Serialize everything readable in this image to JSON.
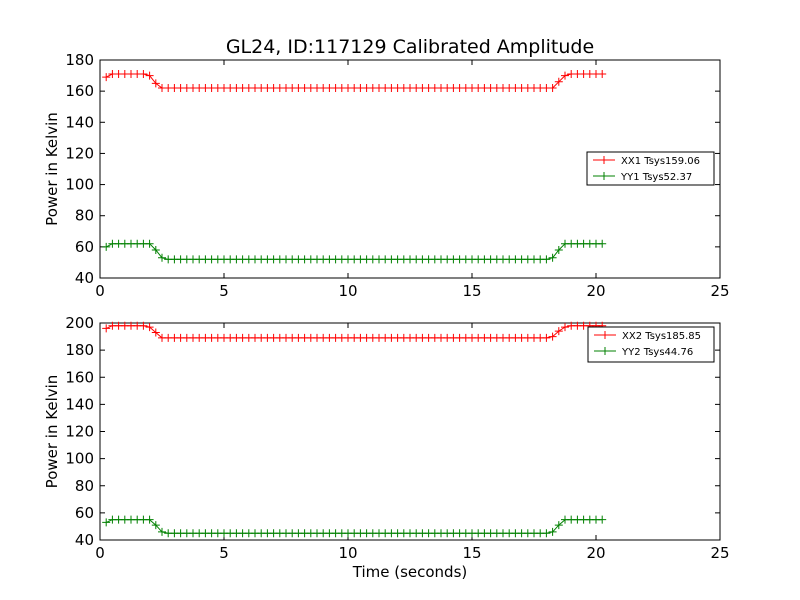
{
  "figure": {
    "title": "GL24, ID:117129 Calibrated Amplitude",
    "xlabel": "Time (seconds)"
  },
  "chart_data": [
    {
      "type": "line",
      "title": "GL24, ID:117129 Calibrated Amplitude",
      "xlabel": "",
      "ylabel": "Power in Kelvin",
      "xlim": [
        0,
        25
      ],
      "ylim": [
        40,
        180
      ],
      "xticks": [
        "0",
        "5",
        "10",
        "15",
        "20",
        "25"
      ],
      "yticks": [
        "40",
        "60",
        "80",
        "100",
        "120",
        "140",
        "160",
        "180"
      ],
      "grid": false,
      "legend_position": "right",
      "marker": "+",
      "series": [
        {
          "name": "XX1 Tsys159.06",
          "color": "#ff0000",
          "x": [
            0.25,
            0.5,
            0.75,
            1.0,
            1.25,
            1.5,
            1.75,
            2.0,
            2.25,
            2.5,
            17.75,
            18.0,
            18.25,
            18.5,
            18.75,
            19.0,
            19.25,
            19.5,
            19.75,
            20.0,
            20.25
          ],
          "y": [
            169,
            171,
            171,
            171,
            171,
            171,
            171,
            170,
            165,
            162,
            162,
            162,
            162,
            166,
            170,
            171,
            171,
            171,
            171,
            171,
            171
          ],
          "plateau": {
            "x_start": 2.5,
            "x_end": 17.75,
            "y": 162
          }
        },
        {
          "name": "YY1 Tsys52.37",
          "color": "#008000",
          "x": [
            0.25,
            0.5,
            0.75,
            1.0,
            1.25,
            1.5,
            1.75,
            2.0,
            2.25,
            2.5,
            17.75,
            18.0,
            18.25,
            18.5,
            18.75,
            19.0,
            19.25,
            19.5,
            19.75,
            20.0,
            20.25
          ],
          "y": [
            60,
            62,
            62,
            62,
            62,
            62,
            62,
            62,
            58,
            53,
            52,
            52,
            53,
            58,
            62,
            62,
            62,
            62,
            62,
            62,
            62
          ],
          "plateau": {
            "x_start": 2.5,
            "x_end": 17.75,
            "y": 52
          }
        }
      ]
    },
    {
      "type": "line",
      "title": "",
      "xlabel": "Time (seconds)",
      "ylabel": "Power in Kelvin",
      "xlim": [
        0,
        25
      ],
      "ylim": [
        40,
        200
      ],
      "xticks": [
        "0",
        "5",
        "10",
        "15",
        "20",
        "25"
      ],
      "yticks": [
        "40",
        "60",
        "80",
        "100",
        "120",
        "140",
        "160",
        "180",
        "200"
      ],
      "grid": false,
      "legend_position": "top-right",
      "marker": "+",
      "series": [
        {
          "name": "XX2 Tsys185.85",
          "color": "#ff0000",
          "x": [
            0.25,
            0.5,
            0.75,
            1.0,
            1.25,
            1.5,
            1.75,
            2.0,
            2.25,
            2.5,
            17.75,
            18.0,
            18.25,
            18.5,
            18.75,
            19.0,
            19.25,
            19.5,
            19.75,
            20.0,
            20.25
          ],
          "y": [
            196,
            198,
            198,
            198,
            198,
            198,
            198,
            197,
            193,
            189,
            189,
            189,
            190,
            194,
            197,
            198,
            198,
            198,
            198,
            198,
            198
          ],
          "plateau": {
            "x_start": 2.5,
            "x_end": 17.75,
            "y": 189
          }
        },
        {
          "name": "YY2 Tsys44.76",
          "color": "#008000",
          "x": [
            0.25,
            0.5,
            0.75,
            1.0,
            1.25,
            1.5,
            1.75,
            2.0,
            2.25,
            2.5,
            17.75,
            18.0,
            18.25,
            18.5,
            18.75,
            19.0,
            19.25,
            19.5,
            19.75,
            20.0,
            20.25
          ],
          "y": [
            53,
            55,
            55,
            55,
            55,
            55,
            55,
            55,
            51,
            46,
            45,
            45,
            46,
            51,
            55,
            55,
            55,
            55,
            55,
            55,
            55
          ],
          "plateau": {
            "x_start": 2.5,
            "x_end": 17.75,
            "y": 45
          }
        }
      ]
    }
  ]
}
